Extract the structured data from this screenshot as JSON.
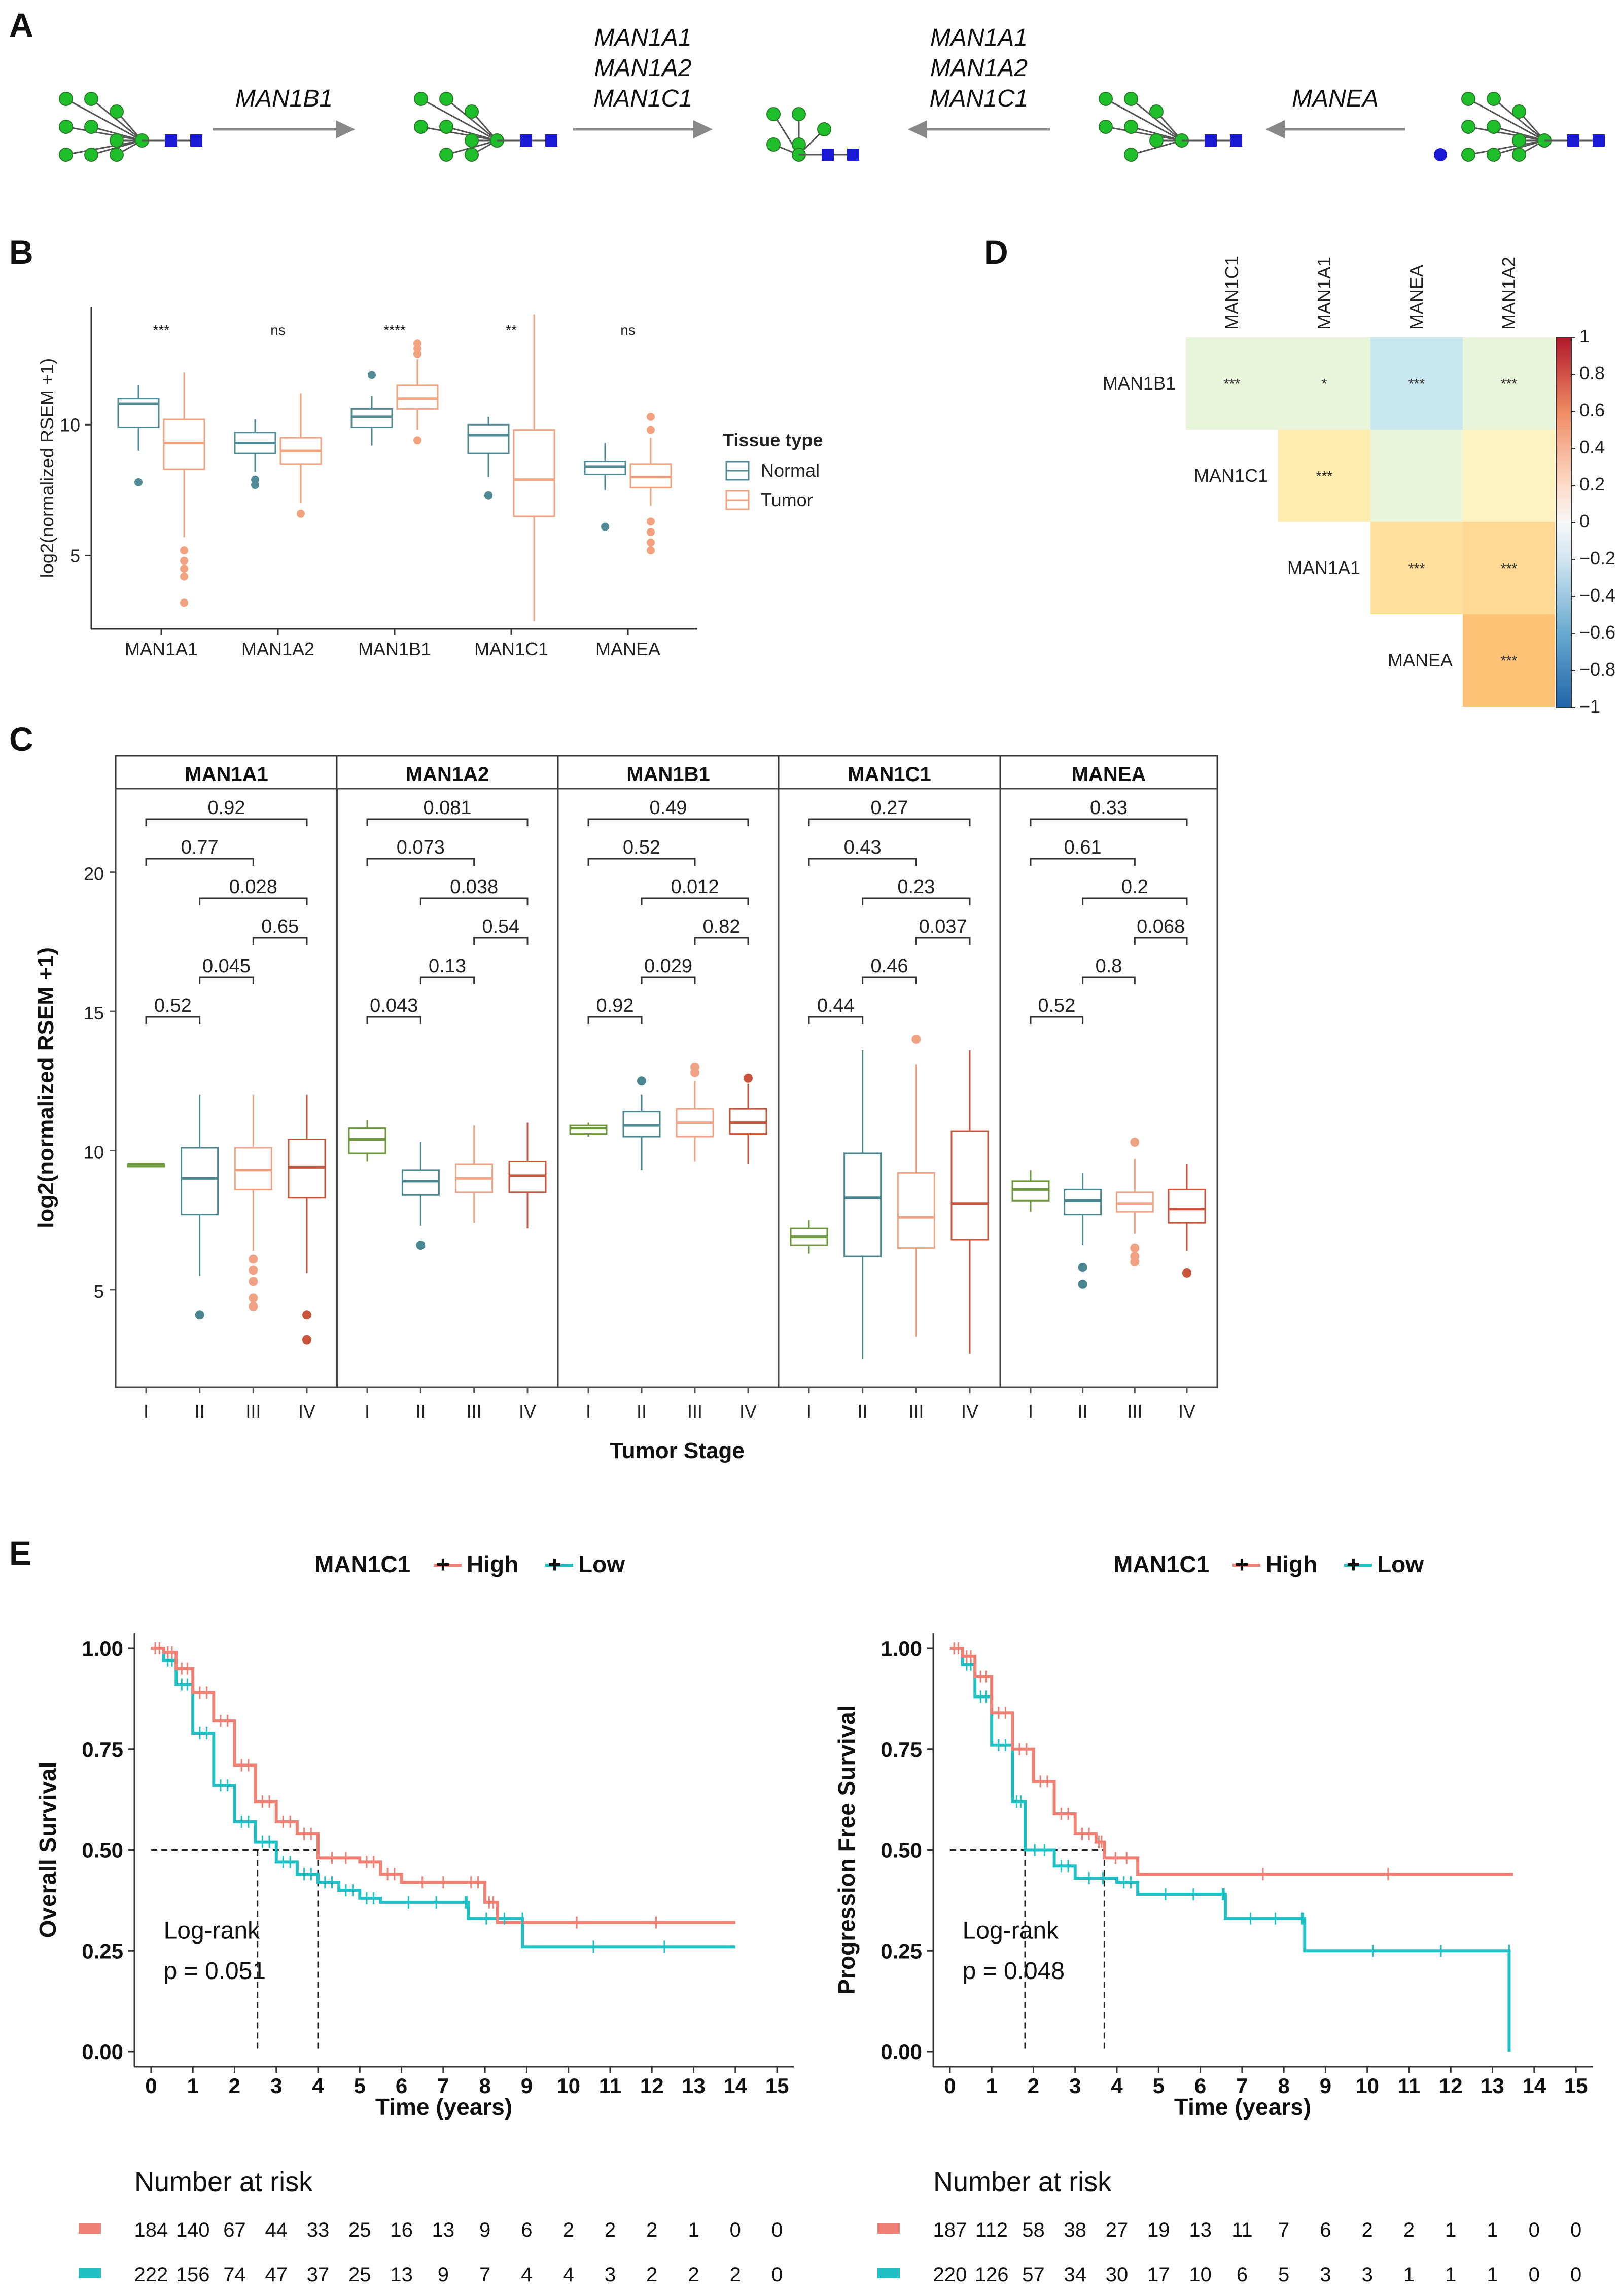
{
  "panels": {
    "a": "A",
    "b": "B",
    "c": "C",
    "d": "D",
    "e": "E"
  },
  "colors": {
    "normal": "#4f8a95",
    "tumor": "#f2a27e",
    "stage": [
      "#6f9a3c",
      "#4a8690",
      "#f0a285",
      "#c8543c"
    ],
    "high": "#f07f74",
    "low": "#1fbfc3"
  },
  "panel_a": {
    "arrows": [
      {
        "labels": [
          "MAN1B1"
        ],
        "direction": "right"
      },
      {
        "labels": [
          "MAN1A1",
          "MAN1A2",
          "MAN1C1"
        ],
        "direction": "right"
      },
      {
        "labels": [
          "MAN1A1",
          "MAN1A2",
          "MAN1C1"
        ],
        "direction": "left"
      },
      {
        "labels": [
          "MANEA"
        ],
        "direction": "left"
      }
    ],
    "glycan_icon_names": [
      "glycan-structure-1",
      "glycan-structure-2",
      "glycan-structure-3",
      "glycan-structure-4",
      "glycan-structure-5"
    ]
  },
  "panel_b": {
    "ylabel": "log2(normalized RSEM +1)",
    "yticks": [
      5,
      10
    ],
    "ylim": [
      2.2,
      14.5
    ],
    "genes": [
      "MAN1A1",
      "MAN1A2",
      "MAN1B1",
      "MAN1C1",
      "MANEA"
    ],
    "significance": [
      "***",
      "ns",
      "****",
      "**",
      "ns"
    ],
    "legend": {
      "title": "Tissue type",
      "items": [
        "Normal",
        "Tumor"
      ]
    },
    "boxes": [
      {
        "gene": "MAN1A1",
        "group": "Normal",
        "q1": 9.9,
        "med": 10.8,
        "q3": 11.0,
        "lo": 9.0,
        "hi": 11.5,
        "out": [
          7.8
        ]
      },
      {
        "gene": "MAN1A1",
        "group": "Tumor",
        "q1": 8.3,
        "med": 9.3,
        "q3": 10.2,
        "lo": 5.7,
        "hi": 12.0,
        "out": [
          5.2,
          4.8,
          4.5,
          4.2,
          3.2
        ]
      },
      {
        "gene": "MAN1A2",
        "group": "Normal",
        "q1": 8.9,
        "med": 9.3,
        "q3": 9.7,
        "lo": 8.2,
        "hi": 10.2,
        "out": [
          7.9,
          7.7
        ]
      },
      {
        "gene": "MAN1A2",
        "group": "Tumor",
        "q1": 8.5,
        "med": 9.0,
        "q3": 9.5,
        "lo": 7.0,
        "hi": 11.2,
        "out": [
          6.6
        ]
      },
      {
        "gene": "MAN1B1",
        "group": "Normal",
        "q1": 9.9,
        "med": 10.3,
        "q3": 10.6,
        "lo": 9.2,
        "hi": 11.1,
        "out": [
          11.9
        ]
      },
      {
        "gene": "MAN1B1",
        "group": "Tumor",
        "q1": 10.6,
        "med": 11.0,
        "q3": 11.5,
        "lo": 9.8,
        "hi": 12.5,
        "out": [
          12.7,
          12.9,
          13.1,
          9.4
        ]
      },
      {
        "gene": "MAN1C1",
        "group": "Normal",
        "q1": 8.9,
        "med": 9.6,
        "q3": 10.0,
        "lo": 8.0,
        "hi": 10.3,
        "out": [
          7.3
        ]
      },
      {
        "gene": "MAN1C1",
        "group": "Tumor",
        "q1": 6.5,
        "med": 7.9,
        "q3": 9.8,
        "lo": 2.5,
        "hi": 14.2,
        "out": []
      },
      {
        "gene": "MANEA",
        "group": "Normal",
        "q1": 8.1,
        "med": 8.4,
        "q3": 8.6,
        "lo": 7.5,
        "hi": 9.3,
        "out": [
          6.1
        ]
      },
      {
        "gene": "MANEA",
        "group": "Tumor",
        "q1": 7.6,
        "med": 8.0,
        "q3": 8.5,
        "lo": 6.9,
        "hi": 9.5,
        "out": [
          6.3,
          5.9,
          5.5,
          5.2,
          10.3,
          9.8
        ]
      }
    ]
  },
  "panel_c": {
    "ylabel": "log2(normalized RSEM +1)",
    "xlabel": "Tumor Stage",
    "stages": [
      "I",
      "II",
      "III",
      "IV"
    ],
    "yticks": [
      5,
      10,
      15,
      20
    ],
    "ylim": [
      1.5,
      23
    ],
    "facets": [
      {
        "gene": "MAN1A1",
        "pvals": [
          "0.92",
          "0.77",
          "0.028",
          "0.65",
          "0.045",
          "0.52"
        ],
        "boxes": [
          {
            "q1": 9.5,
            "med": 9.5,
            "q3": 9.5,
            "lo": 9.5,
            "hi": 9.5,
            "out": []
          },
          {
            "q1": 7.7,
            "med": 9.0,
            "q3": 10.1,
            "lo": 5.5,
            "hi": 12.0,
            "out": [
              4.1
            ]
          },
          {
            "q1": 8.6,
            "med": 9.3,
            "q3": 10.1,
            "lo": 6.4,
            "hi": 12.0,
            "out": [
              6.1,
              5.7,
              5.3,
              4.7,
              4.4
            ]
          },
          {
            "q1": 8.3,
            "med": 9.4,
            "q3": 10.4,
            "lo": 5.6,
            "hi": 12.0,
            "out": [
              4.1,
              3.2
            ]
          }
        ]
      },
      {
        "gene": "MAN1A2",
        "pvals": [
          "0.081",
          "0.073",
          "0.038",
          "0.54",
          "0.13",
          "0.043"
        ],
        "boxes": [
          {
            "q1": 9.9,
            "med": 10.4,
            "q3": 10.8,
            "lo": 9.6,
            "hi": 11.1,
            "out": []
          },
          {
            "q1": 8.4,
            "med": 8.9,
            "q3": 9.3,
            "lo": 7.3,
            "hi": 10.3,
            "out": [
              6.6
            ]
          },
          {
            "q1": 8.5,
            "med": 9.0,
            "q3": 9.5,
            "lo": 7.4,
            "hi": 10.9,
            "out": []
          },
          {
            "q1": 8.5,
            "med": 9.1,
            "q3": 9.6,
            "lo": 7.2,
            "hi": 11.0,
            "out": []
          }
        ]
      },
      {
        "gene": "MAN1B1",
        "pvals": [
          "0.49",
          "0.52",
          "0.012",
          "0.82",
          "0.029",
          "0.92"
        ],
        "boxes": [
          {
            "q1": 10.6,
            "med": 10.8,
            "q3": 10.9,
            "lo": 10.5,
            "hi": 11.0,
            "out": []
          },
          {
            "q1": 10.5,
            "med": 10.9,
            "q3": 11.4,
            "lo": 9.3,
            "hi": 12.0,
            "out": [
              12.5
            ]
          },
          {
            "q1": 10.5,
            "med": 11.0,
            "q3": 11.5,
            "lo": 9.6,
            "hi": 12.5,
            "out": [
              12.8,
              13.0
            ]
          },
          {
            "q1": 10.6,
            "med": 11.0,
            "q3": 11.5,
            "lo": 9.5,
            "hi": 12.4,
            "out": [
              12.6
            ]
          }
        ]
      },
      {
        "gene": "MAN1C1",
        "pvals": [
          "0.27",
          "0.43",
          "0.23",
          "0.037",
          "0.46",
          "0.44"
        ],
        "boxes": [
          {
            "q1": 6.6,
            "med": 6.9,
            "q3": 7.2,
            "lo": 6.3,
            "hi": 7.5,
            "out": []
          },
          {
            "q1": 6.2,
            "med": 8.3,
            "q3": 9.9,
            "lo": 2.5,
            "hi": 13.6,
            "out": []
          },
          {
            "q1": 6.5,
            "med": 7.6,
            "q3": 9.2,
            "lo": 3.3,
            "hi": 13.1,
            "out": [
              14.0
            ]
          },
          {
            "q1": 6.8,
            "med": 8.1,
            "q3": 10.7,
            "lo": 2.7,
            "hi": 13.6,
            "out": []
          }
        ]
      },
      {
        "gene": "MANEA",
        "pvals": [
          "0.33",
          "0.61",
          "0.2",
          "0.068",
          "0.8",
          "0.52"
        ],
        "boxes": [
          {
            "q1": 8.2,
            "med": 8.6,
            "q3": 8.9,
            "lo": 7.8,
            "hi": 9.3,
            "out": []
          },
          {
            "q1": 7.7,
            "med": 8.2,
            "q3": 8.6,
            "lo": 6.6,
            "hi": 9.2,
            "out": [
              5.8,
              5.2
            ]
          },
          {
            "q1": 7.8,
            "med": 8.1,
            "q3": 8.5,
            "lo": 7.0,
            "hi": 9.7,
            "out": [
              10.3,
              6.5,
              6.2,
              6.0
            ]
          },
          {
            "q1": 7.4,
            "med": 7.9,
            "q3": 8.6,
            "lo": 6.4,
            "hi": 9.5,
            "out": [
              5.6
            ]
          }
        ]
      }
    ]
  },
  "panel_d": {
    "col_labels": [
      "MAN1C1",
      "MAN1A1",
      "MANEA",
      "MAN1A2"
    ],
    "row_labels": [
      "MAN1B1",
      "MAN1C1",
      "MAN1A1",
      "MANEA"
    ],
    "matrix": [
      [
        {
          "v": 0.1,
          "sig": "***"
        },
        {
          "v": 0.12,
          "sig": "*"
        },
        {
          "v": -0.28,
          "sig": "***"
        },
        {
          "v": 0.06,
          "sig": "***"
        }
      ],
      [
        null,
        {
          "v": 0.28,
          "sig": "***"
        },
        {
          "v": 0.08,
          "sig": ""
        },
        {
          "v": 0.2,
          "sig": ""
        }
      ],
      [
        null,
        null,
        {
          "v": 0.36,
          "sig": "***"
        },
        {
          "v": 0.4,
          "sig": "***"
        }
      ],
      [
        null,
        null,
        null,
        {
          "v": 0.52,
          "sig": "***"
        }
      ]
    ],
    "scale_ticks": [
      "1",
      "0.8",
      "0.6",
      "0.4",
      "0.2",
      "0",
      "−0.2",
      "−0.4",
      "−0.6",
      "−0.8",
      "−1"
    ]
  },
  "panel_e": {
    "plots": [
      {
        "legend_title": "MAN1C1",
        "legend_high": "High",
        "legend_low": "Low",
        "ylabel": "Overall Survival",
        "xlabel": "Time (years)",
        "pval_line1": "Log-rank",
        "pval_line2": "p = 0.051",
        "median_high": 4.0,
        "median_low": 2.55,
        "high_curve": [
          [
            0,
            1.0
          ],
          [
            0.3,
            0.99
          ],
          [
            0.6,
            0.95
          ],
          [
            1.0,
            0.89
          ],
          [
            1.5,
            0.82
          ],
          [
            2.0,
            0.71
          ],
          [
            2.5,
            0.62
          ],
          [
            3.0,
            0.57
          ],
          [
            3.5,
            0.54
          ],
          [
            4.0,
            0.48
          ],
          [
            5.0,
            0.47
          ],
          [
            5.5,
            0.44
          ],
          [
            6.0,
            0.42
          ],
          [
            7.5,
            0.42
          ],
          [
            8.0,
            0.37
          ],
          [
            8.3,
            0.32
          ],
          [
            14.0,
            0.32
          ]
        ],
        "low_curve": [
          [
            0,
            1.0
          ],
          [
            0.3,
            0.97
          ],
          [
            0.6,
            0.91
          ],
          [
            1.0,
            0.79
          ],
          [
            1.5,
            0.66
          ],
          [
            2.0,
            0.57
          ],
          [
            2.5,
            0.52
          ],
          [
            3.0,
            0.47
          ],
          [
            3.5,
            0.44
          ],
          [
            4.0,
            0.42
          ],
          [
            4.5,
            0.4
          ],
          [
            5.0,
            0.38
          ],
          [
            5.5,
            0.37
          ],
          [
            7.5,
            0.37
          ],
          [
            7.6,
            0.33
          ],
          [
            8.9,
            0.33
          ],
          [
            8.9,
            0.26
          ],
          [
            14.0,
            0.26
          ]
        ],
        "risk_high": [
          "184",
          "140",
          "67",
          "44",
          "33",
          "25",
          "16",
          "13",
          "9",
          "6",
          "2",
          "2",
          "2",
          "1",
          "0",
          "0"
        ],
        "risk_low": [
          "222",
          "156",
          "74",
          "47",
          "37",
          "25",
          "13",
          "9",
          "7",
          "4",
          "4",
          "3",
          "2",
          "2",
          "2",
          "0"
        ]
      },
      {
        "legend_title": "MAN1C1",
        "legend_high": "High",
        "legend_low": "Low",
        "ylabel": "Progression Free Survival",
        "xlabel": "Time (years)",
        "pval_line1": "Log-rank",
        "pval_line2": "p = 0.048",
        "median_high": 3.7,
        "median_low": 1.8,
        "high_curve": [
          [
            0,
            1.0
          ],
          [
            0.3,
            0.98
          ],
          [
            0.6,
            0.93
          ],
          [
            1.0,
            0.84
          ],
          [
            1.5,
            0.75
          ],
          [
            2.0,
            0.67
          ],
          [
            2.5,
            0.59
          ],
          [
            3.0,
            0.54
          ],
          [
            3.5,
            0.52
          ],
          [
            3.7,
            0.48
          ],
          [
            4.5,
            0.44
          ],
          [
            13.5,
            0.44
          ]
        ],
        "low_curve": [
          [
            0,
            1.0
          ],
          [
            0.3,
            0.96
          ],
          [
            0.6,
            0.88
          ],
          [
            1.0,
            0.76
          ],
          [
            1.5,
            0.62
          ],
          [
            1.8,
            0.5
          ],
          [
            2.5,
            0.46
          ],
          [
            3.0,
            0.43
          ],
          [
            4.0,
            0.42
          ],
          [
            4.5,
            0.39
          ],
          [
            6.5,
            0.39
          ],
          [
            6.6,
            0.33
          ],
          [
            8.4,
            0.33
          ],
          [
            8.5,
            0.25
          ],
          [
            13.4,
            0.25
          ],
          [
            13.4,
            0.0
          ]
        ],
        "risk_high": [
          "187",
          "112",
          "58",
          "38",
          "27",
          "19",
          "13",
          "11",
          "7",
          "6",
          "2",
          "2",
          "1",
          "1",
          "0",
          "0"
        ],
        "risk_low": [
          "220",
          "126",
          "57",
          "34",
          "30",
          "17",
          "10",
          "6",
          "5",
          "3",
          "3",
          "1",
          "1",
          "1",
          "0",
          "0"
        ]
      }
    ],
    "xticks": [
      "0",
      "1",
      "2",
      "3",
      "4",
      "5",
      "6",
      "7",
      "8",
      "9",
      "10",
      "11",
      "12",
      "13",
      "14",
      "15"
    ],
    "yticks": [
      "0.00",
      "0.25",
      "0.50",
      "0.75",
      "1.00"
    ],
    "risk_title": "Number at risk"
  }
}
